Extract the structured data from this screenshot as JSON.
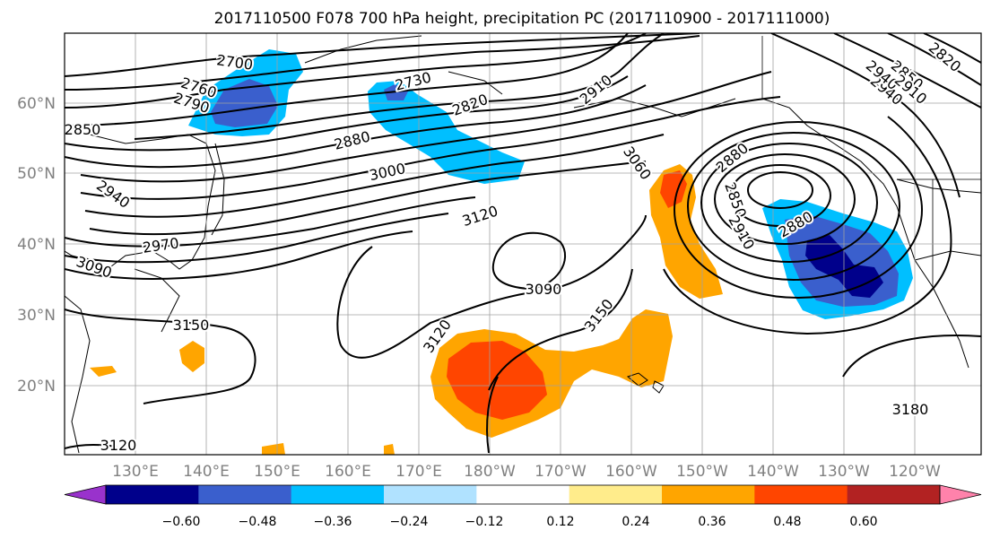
{
  "title": "2017110500 F078 700 hPa height, precipitation PC (2017110900 - 2017111000)",
  "map": {
    "lon_labels": [
      "130°E",
      "140°E",
      "150°E",
      "160°E",
      "170°E",
      "180°W",
      "170°W",
      "160°W",
      "150°W",
      "140°W",
      "130°W",
      "120°W"
    ],
    "lat_labels": [
      "20°N",
      "30°N",
      "40°N",
      "50°N",
      "60°N"
    ],
    "tick_color": "#808080",
    "grid_color": "#a0a0a0",
    "contour_color": "#000000",
    "contour_labels": [
      "2700",
      "2760",
      "2790",
      "2730",
      "2820",
      "2910",
      "2850",
      "2880",
      "3000",
      "2940",
      "2970",
      "3090",
      "3120",
      "3060",
      "3150",
      "3180",
      "2940",
      "2880",
      "2850",
      "2910",
      "2880",
      "2850",
      "2820",
      "2940",
      "2910",
      "3150",
      "3120",
      "3090"
    ]
  },
  "colorbar": {
    "labels": [
      "−0.60",
      "−0.48",
      "−0.36",
      "−0.24",
      "−0.12",
      "0.12",
      "0.24",
      "0.36",
      "0.48",
      "0.60"
    ],
    "colors": [
      "#9932cc",
      "#00008b",
      "#3a5fcd",
      "#00bfff",
      "#b0e2ff",
      "#ffffff",
      "#ffec8b",
      "#ffa500",
      "#ff4500",
      "#b22222",
      "#ff82ab"
    ]
  }
}
